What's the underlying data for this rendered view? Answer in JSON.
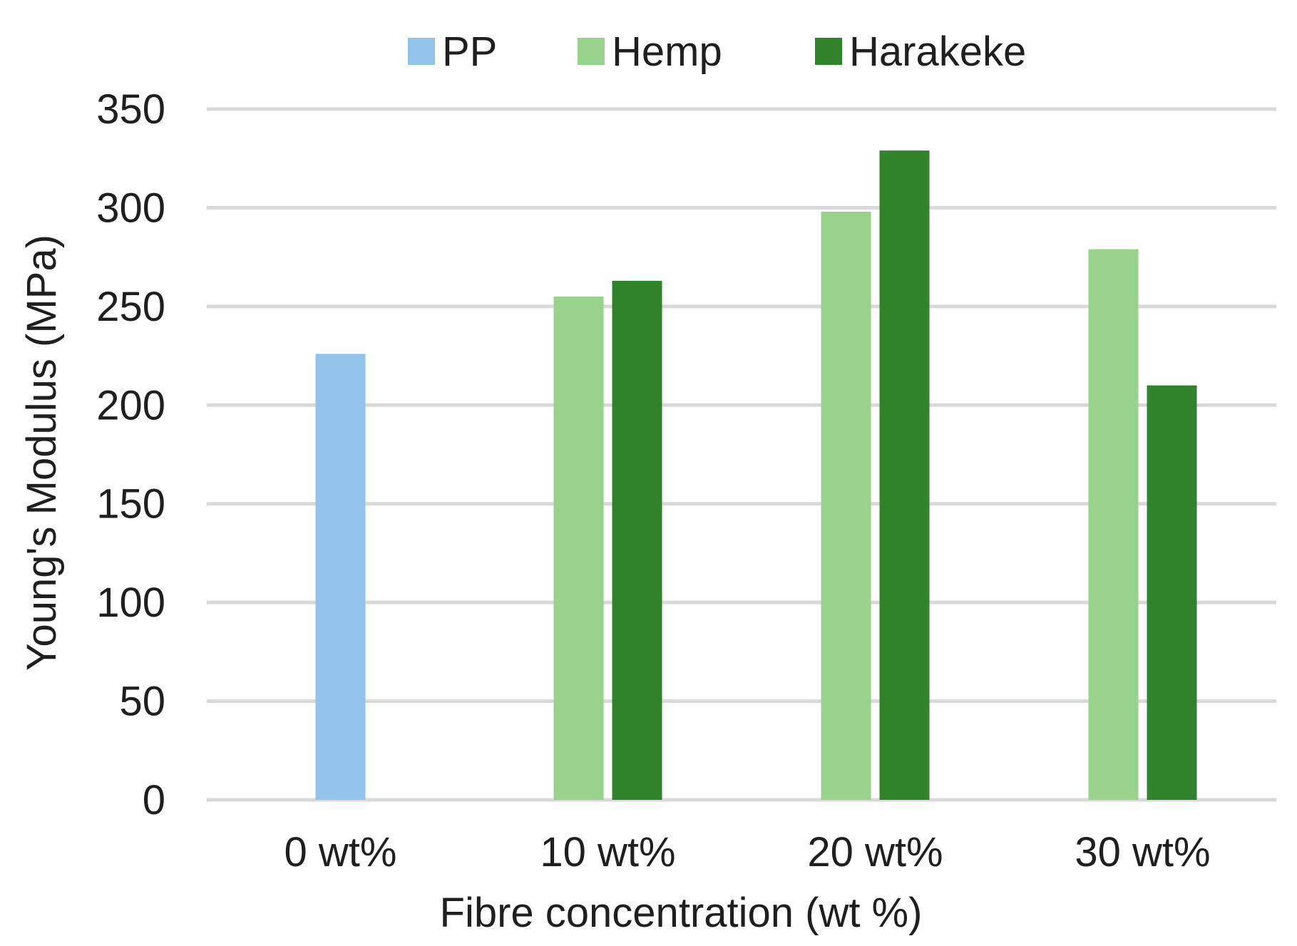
{
  "chart_data": {
    "type": "bar",
    "categories": [
      "0 wt%",
      "10 wt%",
      "20 wt%",
      "30 wt%"
    ],
    "series": [
      {
        "name": "PP",
        "color": "#91c4e8",
        "values": [
          226,
          null,
          null,
          null
        ]
      },
      {
        "name": "Hemp",
        "color": "#98d38b",
        "values": [
          null,
          255,
          298,
          279
        ]
      },
      {
        "name": "Harakeke",
        "color": "#31832b",
        "values": [
          null,
          263,
          329,
          210
        ]
      }
    ],
    "xlabel": "Fibre concentration (wt %)",
    "ylabel": "Young's Modulus (MPa)",
    "ylim": [
      0,
      350
    ],
    "yticks": [
      0,
      50,
      100,
      150,
      200,
      250,
      300,
      350
    ],
    "grid": true,
    "legend_position": "top"
  }
}
